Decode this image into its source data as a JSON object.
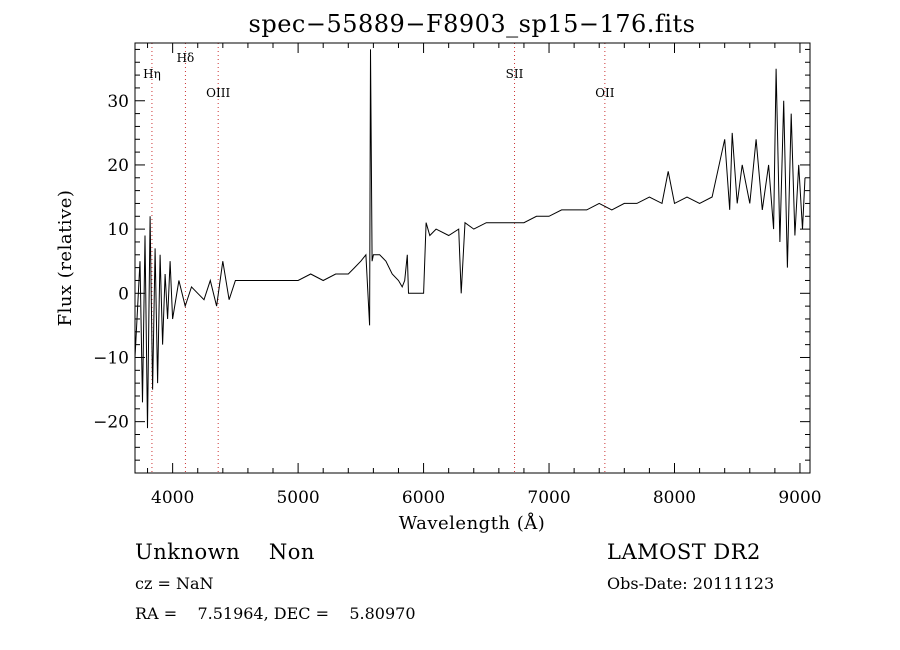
{
  "chart_data": {
    "type": "line",
    "title": "spec−55889−F8903_sp15−176.fits",
    "xlabel": "Wavelength (Å)",
    "ylabel": "Flux (relative)",
    "xlim": [
      3700,
      9080
    ],
    "ylim": [
      -28,
      39
    ],
    "x_ticks": [
      4000,
      5000,
      6000,
      7000,
      8000,
      9000
    ],
    "x_tick_labels": [
      "4000",
      "5000",
      "6000",
      "7000",
      "8000",
      "9000"
    ],
    "y_ticks": [
      -20,
      -10,
      0,
      10,
      20,
      30
    ],
    "y_tick_labels": [
      "−20",
      "−10",
      "0",
      "10",
      "20",
      "30"
    ],
    "line_color": "#000000",
    "marker_line_color": "#cc3333",
    "grid": false,
    "lines": [
      {
        "label": "Hη",
        "x": 3835,
        "label_row": 1
      },
      {
        "label": "Hδ",
        "x": 4102,
        "label_row": 0
      },
      {
        "label": "OIII",
        "x": 4363,
        "label_row": 2
      },
      {
        "label": "SII",
        "x": 6725,
        "label_row": 1
      },
      {
        "label": "OII",
        "x": 7445,
        "label_row": 2
      }
    ],
    "series": [
      {
        "x": [
          3700,
          3740,
          3760,
          3780,
          3800,
          3820,
          3840,
          3860,
          3880,
          3900,
          3920,
          3940,
          3960,
          3980,
          4000,
          4050,
          4100,
          4150,
          4200,
          4250,
          4300,
          4350,
          4400,
          4450,
          4500,
          4600,
          4700,
          4800,
          4900,
          5000,
          5100,
          5200,
          5300,
          5400,
          5450,
          5500,
          5540,
          5570,
          5577,
          5590,
          5600,
          5650,
          5700,
          5750,
          5800,
          5830,
          5850,
          5870,
          5880,
          5890,
          6000,
          6020,
          6050,
          6100,
          6200,
          6280,
          6300,
          6330,
          6400,
          6500,
          6600,
          6700,
          6800,
          6900,
          7000,
          7100,
          7200,
          7300,
          7400,
          7500,
          7600,
          7700,
          7800,
          7900,
          7950,
          8000,
          8100,
          8200,
          8300,
          8400,
          8440,
          8460,
          8500,
          8540,
          8600,
          8650,
          8700,
          8750,
          8790,
          8810,
          8840,
          8870,
          8900,
          8930,
          8960,
          8990,
          9020,
          9040
        ],
        "values": [
          -10,
          5,
          -17,
          9,
          -21,
          12,
          -15,
          7,
          -14,
          6,
          -8,
          3,
          -4,
          5,
          -4,
          2,
          -2,
          1,
          0,
          -1,
          2,
          -2,
          5,
          -1,
          2,
          2,
          2,
          2,
          2,
          2,
          3,
          2,
          3,
          3,
          4,
          5,
          6,
          -5,
          38,
          5,
          6,
          6,
          5,
          3,
          2,
          1,
          2,
          6,
          0,
          0,
          0,
          11,
          9,
          10,
          9,
          10,
          0,
          11,
          10,
          11,
          11,
          11,
          11,
          12,
          12,
          13,
          13,
          13,
          14,
          13,
          14,
          14,
          15,
          14,
          19,
          14,
          15,
          14,
          15,
          24,
          13,
          25,
          14,
          20,
          14,
          24,
          13,
          20,
          10,
          35,
          8,
          30,
          4,
          28,
          9,
          20,
          10,
          18
        ]
      }
    ]
  },
  "footer": {
    "class_text": "Unknown    Non",
    "survey": "LAMOST DR2",
    "cz": "cz = NaN",
    "obs_date": "Obs-Date: 20111123",
    "coords": "RA =    7.51964, DEC =    5.80970"
  }
}
